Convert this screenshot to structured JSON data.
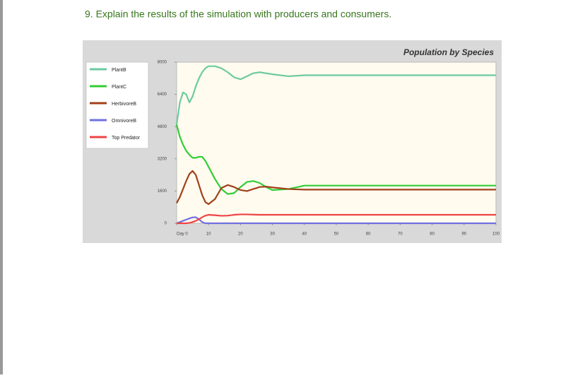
{
  "question": "9. Explain the results of the simulation with producers and consumers.",
  "chart_data": {
    "type": "line",
    "title": "Population by Species",
    "x": [
      0,
      1,
      2,
      3,
      4,
      5,
      6,
      7,
      8,
      9,
      10,
      12,
      14,
      16,
      18,
      20,
      22,
      24,
      26,
      28,
      30,
      35,
      40,
      50,
      60,
      70,
      80,
      90,
      100
    ],
    "series": [
      {
        "name": "PlantB",
        "color": "#6dcaa0",
        "values": [
          4900,
          6000,
          6500,
          6400,
          6000,
          6300,
          6800,
          7200,
          7500,
          7700,
          7800,
          7800,
          7700,
          7500,
          7250,
          7150,
          7300,
          7450,
          7500,
          7450,
          7400,
          7300,
          7350,
          7350,
          7350,
          7350,
          7350,
          7350,
          7350
        ]
      },
      {
        "name": "PlantC",
        "color": "#33cc33",
        "values": [
          4900,
          4300,
          3900,
          3600,
          3400,
          3250,
          3250,
          3300,
          3300,
          3100,
          2800,
          2200,
          1700,
          1450,
          1500,
          1800,
          2050,
          2100,
          2000,
          1800,
          1650,
          1700,
          1870,
          1870,
          1870,
          1870,
          1870,
          1870,
          1870
        ]
      },
      {
        "name": "HerbivoreB",
        "color": "#a0401a",
        "values": [
          1000,
          1300,
          1700,
          2100,
          2450,
          2600,
          2400,
          1900,
          1400,
          1050,
          950,
          1200,
          1750,
          1900,
          1800,
          1650,
          1600,
          1700,
          1800,
          1820,
          1780,
          1700,
          1670,
          1670,
          1670,
          1670,
          1670,
          1670,
          1670
        ]
      },
      {
        "name": "OmnivoreB",
        "color": "#7070e0",
        "values": [
          0,
          60,
          120,
          180,
          240,
          290,
          300,
          200,
          60,
          0,
          0,
          0,
          0,
          0,
          0,
          0,
          0,
          0,
          0,
          0,
          0,
          0,
          0,
          0,
          0,
          0,
          0,
          0,
          0
        ]
      },
      {
        "name": "Top Predator",
        "color": "#ee4444",
        "values": [
          0,
          0,
          0,
          0,
          20,
          60,
          120,
          200,
          300,
          380,
          420,
          400,
          370,
          380,
          420,
          440,
          440,
          430,
          420,
          420,
          420,
          420,
          420,
          420,
          420,
          420,
          420,
          420,
          420
        ]
      }
    ],
    "xlim": [
      0,
      100
    ],
    "xticks": [
      {
        "value": 0,
        "label": "Day 0"
      },
      10,
      20,
      30,
      40,
      50,
      60,
      70,
      80,
      90,
      100
    ],
    "ylim": [
      0,
      8000
    ],
    "yticks": [
      0,
      1600,
      3200,
      4800,
      6400,
      8000
    ],
    "legend": "left"
  }
}
